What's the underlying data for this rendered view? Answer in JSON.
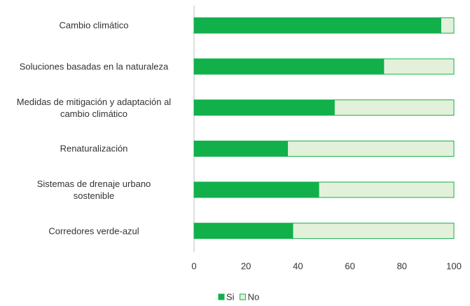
{
  "chart_data": {
    "type": "bar",
    "orientation": "horizontal",
    "stacked": true,
    "categories": [
      "Cambio climático",
      "Soluciones basadas en la naturaleza",
      "Medidas de mitigación y adaptación al\ncambio climático",
      "Renaturalización",
      "Sistemas de drenaje urbano\nsostenible",
      "Corredores verde-azul"
    ],
    "series": [
      {
        "name": "Si",
        "color": "#11b04b",
        "values": [
          95,
          73,
          54,
          36,
          48,
          38
        ]
      },
      {
        "name": "No",
        "color": "#e3f1da",
        "values": [
          5,
          27,
          46,
          64,
          52,
          62
        ]
      }
    ],
    "xlim": [
      0,
      100
    ],
    "xticks": [
      0,
      20,
      40,
      60,
      80,
      100
    ],
    "grid": false,
    "legend": "bottom"
  }
}
